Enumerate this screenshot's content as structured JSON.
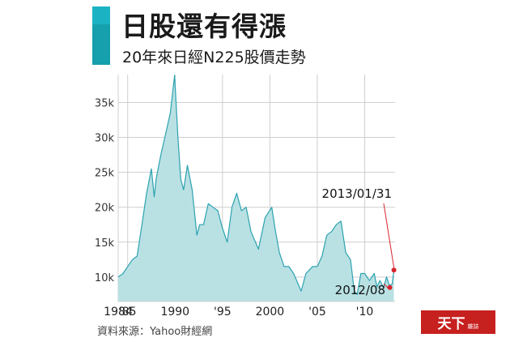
{
  "header": {
    "title": "日股還有得漲",
    "subtitle": "20年來日經N225股價走勢"
  },
  "source": "資料來源：Yahoo財經網",
  "logo": {
    "main": "天下",
    "sub": "雜誌"
  },
  "colors": {
    "accent": "#1bb3c4",
    "accent_dark": "#16a0ad",
    "area_fill": "#b9e1e3",
    "line": "#2ca2b0",
    "marker": "#d7242c"
  },
  "chart_data": {
    "type": "area",
    "title": "",
    "xlabel": "",
    "ylabel": "",
    "grid": true,
    "legend": "none",
    "xlim": [
      1984,
      2013.2
    ],
    "ylim": [
      6500,
      39000
    ],
    "x_tick_labels": [
      {
        "x": 1984,
        "label": "1984"
      },
      {
        "x": 1985,
        "label": "'85"
      },
      {
        "x": 1990,
        "label": "1990"
      },
      {
        "x": 1995,
        "label": "'95"
      },
      {
        "x": 2000,
        "label": "2000"
      },
      {
        "x": 2005,
        "label": "'05"
      },
      {
        "x": 2010,
        "label": "'10"
      }
    ],
    "y_ticks": [
      {
        "y": 10000,
        "label": "10k"
      },
      {
        "y": 15000,
        "label": "15k"
      },
      {
        "y": 20000,
        "label": "20k"
      },
      {
        "y": 25000,
        "label": "25k"
      },
      {
        "y": 30000,
        "label": "30k"
      },
      {
        "y": 35000,
        "label": "35k"
      }
    ],
    "series": [
      {
        "x": [
          1984.0,
          1984.5,
          1985.0,
          1985.5,
          1986.0,
          1986.5,
          1987.0,
          1987.5,
          1987.8,
          1988.0,
          1988.5,
          1989.0,
          1989.5,
          1989.95,
          1990.3,
          1990.6,
          1990.9,
          1991.3,
          1991.8,
          1992.3,
          1992.6,
          1993.0,
          1993.5,
          1994.0,
          1994.5,
          1995.0,
          1995.5,
          1996.0,
          1996.5,
          1997.0,
          1997.5,
          1998.0,
          1998.8,
          1999.5,
          2000.2,
          2000.6,
          2001.0,
          2001.5,
          2002.0,
          2002.5,
          2003.3,
          2003.8,
          2004.5,
          2005.0,
          2005.5,
          2006.0,
          2006.5,
          2007.0,
          2007.5,
          2008.0,
          2008.5,
          2008.9,
          2009.2,
          2009.6,
          2010.0,
          2010.5,
          2011.0,
          2011.3,
          2011.6,
          2012.0,
          2012.3,
          2012.6,
          2012.9,
          2013.08
        ],
        "y": [
          10000,
          10500,
          11500,
          12500,
          13000,
          17500,
          22000,
          25500,
          21500,
          24000,
          27500,
          30500,
          33500,
          38900,
          30000,
          24000,
          22500,
          26000,
          22500,
          16000,
          17500,
          17500,
          20500,
          20000,
          19500,
          17000,
          15000,
          20000,
          22000,
          19500,
          20000,
          16500,
          14000,
          18500,
          20000,
          16500,
          13500,
          11500,
          11500,
          10500,
          8000,
          10500,
          11500,
          11500,
          13000,
          16000,
          16500,
          17500,
          18000,
          13500,
          12500,
          8000,
          7500,
          10500,
          10500,
          9500,
          10500,
          8600,
          9500,
          8500,
          10000,
          8800,
          9000,
          11000
        ]
      }
    ],
    "annotations": [
      {
        "x": 2012.65,
        "y": 8500,
        "label": "2012/08"
      },
      {
        "x": 2013.08,
        "y": 11000,
        "label": "2013/01/31"
      }
    ]
  }
}
